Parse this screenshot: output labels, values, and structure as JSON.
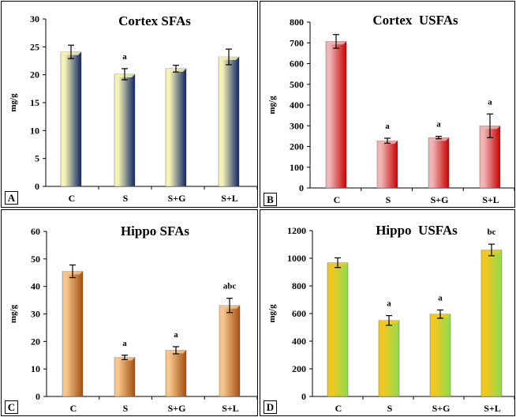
{
  "chart_data": [
    {
      "id": "A",
      "type": "bar",
      "panel_label": "A",
      "title": "Cortex SFAs",
      "xlabel": "",
      "ylabel": "mg/g",
      "categories": [
        "C",
        "S",
        "S+G",
        "S+L"
      ],
      "values": [
        24.1,
        20.1,
        21.1,
        23.2
      ],
      "errors": [
        1.2,
        1.0,
        0.6,
        1.4
      ],
      "annotations": [
        "",
        "a",
        "",
        ""
      ],
      "ylim": [
        0,
        30
      ],
      "yticks": [
        0,
        5,
        10,
        15,
        20,
        25,
        30
      ],
      "grid": false,
      "colors": {
        "light": "#f4f2b4",
        "dark": "#0d2466"
      }
    },
    {
      "id": "B",
      "type": "bar",
      "panel_label": "B",
      "title": "Cortex  USFAs",
      "xlabel": "",
      "ylabel": "mg/g",
      "categories": [
        "C",
        "S",
        "S+G",
        "S+L"
      ],
      "values": [
        707,
        228,
        243,
        300
      ],
      "errors": [
        33,
        12,
        6,
        57
      ],
      "annotations": [
        "",
        "a",
        "a",
        "a"
      ],
      "ylim": [
        0,
        800
      ],
      "yticks": [
        0,
        100,
        200,
        300,
        400,
        500,
        600,
        700,
        800
      ],
      "grid": false,
      "colors": {
        "light": "#f0b4b4",
        "dark": "#c80000"
      }
    },
    {
      "id": "C",
      "type": "bar",
      "panel_label": "C",
      "title": "Hippo SFAs",
      "xlabel": "",
      "ylabel": "mg/g",
      "categories": [
        "C",
        "S",
        "S+G",
        "S+L"
      ],
      "values": [
        45.5,
        14.2,
        16.8,
        33.1
      ],
      "errors": [
        2.3,
        0.8,
        1.3,
        2.6
      ],
      "annotations": [
        "",
        "a",
        "a",
        "abc"
      ],
      "ylim": [
        0,
        60
      ],
      "yticks": [
        0,
        10,
        20,
        30,
        40,
        50,
        60
      ],
      "grid": false,
      "colors": {
        "light": "#f6c48c",
        "dark": "#a3500f"
      }
    },
    {
      "id": "D",
      "type": "bar",
      "panel_label": "D",
      "title": "Hippo  USFAs",
      "xlabel": "",
      "ylabel": "mg/g",
      "categories": [
        "C",
        "S",
        "S+G",
        "S+L"
      ],
      "values": [
        968,
        550,
        596,
        1060
      ],
      "errors": [
        35,
        35,
        30,
        42
      ],
      "annotations": [
        "",
        "a",
        "a",
        "bc"
      ],
      "ylim": [
        0,
        1200
      ],
      "yticks": [
        0,
        200,
        400,
        600,
        800,
        1000,
        1200
      ],
      "grid": false,
      "colors": {
        "light": "#f2c81e",
        "dark": "#8edc50"
      }
    }
  ]
}
